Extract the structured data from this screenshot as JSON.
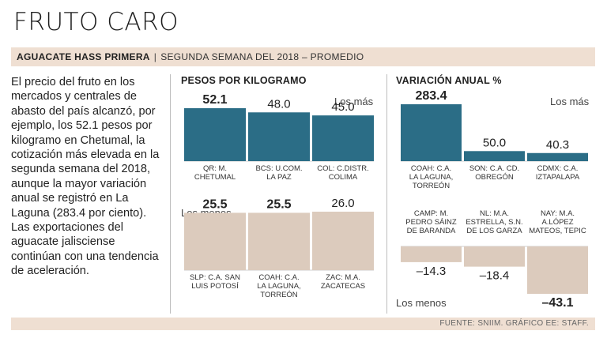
{
  "title": "FRUTO CARO",
  "subtitle": {
    "lead": "AGUACATE HASS PRIMERA",
    "separator": "|",
    "rest": "SEGUNDA SEMANA DEL 2018 – PROMEDIO"
  },
  "body_text": "El precio del fruto en los mercados y centrales de abasto del país alcanzó, por ejemplo, los 52.1 pesos por kilogramo en Chetumal, la cotización más elevada en la segunda semana del 2018, aunque la mayor variación anual se registró en La Laguna (283.4 por ciento). Las exportaciones del aguacate jalisciense continúan con una tendencia de aceleración.",
  "footer": "FUENTE: SNIIM.  GRÁFICO EE: STAFF.",
  "colors": {
    "accent": "#2b6d86",
    "muted": "#dccbbd",
    "band": "#efdfd2"
  },
  "chart_data": [
    {
      "type": "bar",
      "title": "PESOS POR KILOGRAMO",
      "section": "Los más",
      "unit": "pesos/kg",
      "categories": [
        [
          "QR: M.",
          "CHETUMAL"
        ],
        [
          "BCS: U.COM.",
          "LA PAZ"
        ],
        [
          "COL: C.DISTR.",
          "COLIMA"
        ]
      ],
      "values": [
        52.1,
        48.0,
        45.0
      ],
      "labels": [
        "52.1",
        "48.0",
        "45.0"
      ]
    },
    {
      "type": "bar",
      "title": "",
      "section": "Los menos",
      "unit": "pesos/kg",
      "categories": [
        [
          "SLP: C.A. SAN",
          "LUIS POTOSÍ"
        ],
        [
          "COAH: C.A.",
          "LA LAGUNA,",
          "TORREÓN"
        ],
        [
          "ZAC: M.A.",
          "ZACATECAS"
        ]
      ],
      "values": [
        25.5,
        25.5,
        26.0
      ],
      "labels": [
        "25.5",
        "25.5",
        "26.0"
      ]
    },
    {
      "type": "bar",
      "title": "VARIACIÓN ANUAL %",
      "section": "Los más",
      "unit": "%",
      "categories": [
        [
          "COAH: C.A.",
          "LA LAGUNA,",
          "TORREÓN"
        ],
        [
          "SON: C.A. CD.",
          "OBREGÓN"
        ],
        [
          "CDMX: C.A.",
          "IZTAPALAPA"
        ]
      ],
      "values": [
        283.4,
        50.0,
        40.3
      ],
      "labels": [
        "283.4",
        "50.0",
        "40.3"
      ]
    },
    {
      "type": "bar",
      "title": "",
      "section": "Los menos",
      "unit": "%",
      "categories": [
        [
          "CAMP: M.",
          "PEDRO SÁINZ",
          "DE BARANDA"
        ],
        [
          "NL: M.A.",
          "ESTRELLA, S.N.",
          "DE LOS GARZA"
        ],
        [
          "NAY: M.A.",
          "A.LÓPEZ",
          "MATEOS, TEPIC"
        ]
      ],
      "values": [
        -14.3,
        -18.4,
        -43.1
      ],
      "labels": [
        "–14.3",
        "–18.4",
        "–43.1"
      ]
    }
  ]
}
